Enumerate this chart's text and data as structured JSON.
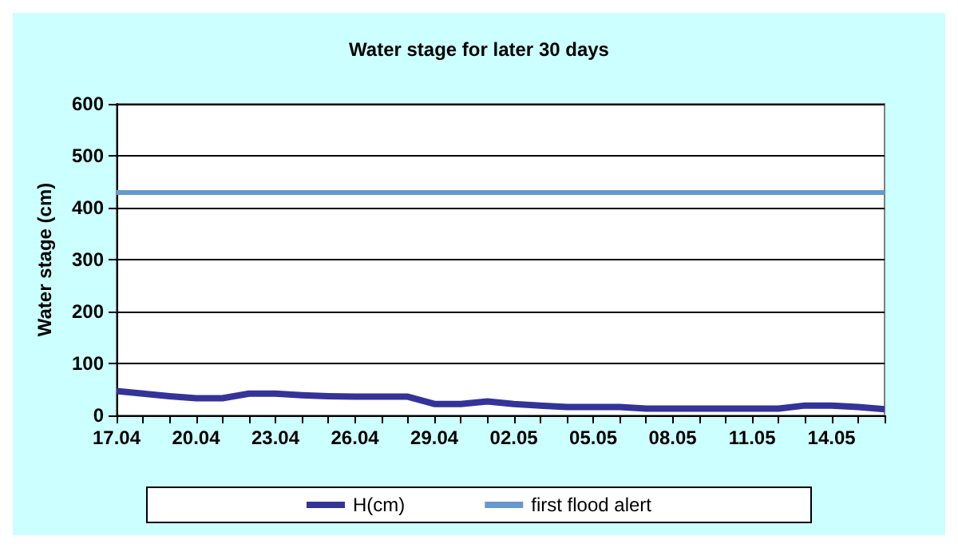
{
  "chart_data": {
    "type": "line",
    "title": "Water stage for later 30 days",
    "ylabel": "Water stage (cm)",
    "categories": [
      "17.04",
      null,
      null,
      "20.04",
      null,
      null,
      "23.04",
      null,
      null,
      "26.04",
      null,
      null,
      "29.04",
      null,
      null,
      "02.05",
      null,
      null,
      "05.05",
      null,
      null,
      "08.05",
      null,
      null,
      "11.05",
      null,
      null,
      "14.05",
      null,
      null
    ],
    "series": [
      {
        "name": "H(cm)",
        "color": "#333399",
        "values": [
          47,
          42,
          37,
          33,
          33,
          42,
          42,
          39,
          37,
          36,
          36,
          36,
          22,
          22,
          27,
          22,
          19,
          16,
          16,
          16,
          13,
          13,
          13,
          13,
          13,
          13,
          19,
          19,
          16,
          12
        ]
      }
    ],
    "ref_lines": [
      {
        "axis": "y",
        "value": 430,
        "label": "first flood alert",
        "color": "#6699cc"
      }
    ],
    "ylim": [
      0,
      600
    ],
    "yticks": [
      0,
      100,
      200,
      300,
      400,
      500,
      600
    ],
    "grid": "y",
    "legend": "bottom",
    "marker": "none",
    "line_style": "solid"
  }
}
